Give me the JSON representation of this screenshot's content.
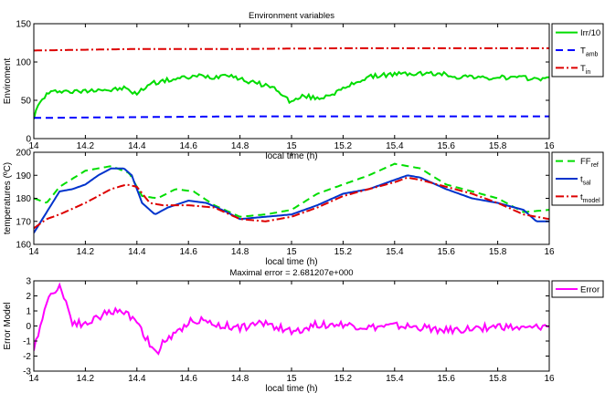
{
  "chart_data": [
    {
      "type": "line",
      "title": "Environment variables",
      "xlabel": "local time (h)",
      "ylabel": "Enviroment",
      "xlim": [
        14,
        16
      ],
      "ylim": [
        0,
        150
      ],
      "xticks": [
        14,
        14.2,
        14.4,
        14.6,
        14.8,
        15,
        15.2,
        15.4,
        15.6,
        15.8,
        16
      ],
      "xtick_labels": [
        "14",
        "14.2",
        "14.4",
        "14.6",
        "14.8",
        "15",
        "15.2",
        "15.4",
        "15.6",
        "15.8",
        "16"
      ],
      "yticks": [
        0,
        50,
        100,
        150
      ],
      "ytick_labels": [
        "0",
        "50",
        "100",
        "150"
      ],
      "grid": false,
      "legend_position": "outside-right",
      "series": [
        {
          "name": "Irr/10",
          "sub": "",
          "color": "#00dd00",
          "dash": "solid",
          "noise": 3,
          "x": [
            14.0,
            14.02,
            14.05,
            14.1,
            14.15,
            14.2,
            14.25,
            14.3,
            14.35,
            14.4,
            14.45,
            14.5,
            14.55,
            14.6,
            14.65,
            14.7,
            14.75,
            14.8,
            14.85,
            14.9,
            14.95,
            14.98,
            15.0,
            15.05,
            15.1,
            15.15,
            15.2,
            15.25,
            15.3,
            15.35,
            15.4,
            15.5,
            15.6,
            15.65,
            15.7,
            15.75,
            15.8,
            15.9,
            16.0
          ],
          "y": [
            28,
            45,
            58,
            63,
            61,
            62,
            65,
            63,
            66,
            58,
            72,
            75,
            78,
            80,
            82,
            80,
            85,
            78,
            73,
            70,
            63,
            52,
            48,
            56,
            52,
            58,
            64,
            74,
            80,
            83,
            84,
            85,
            84,
            80,
            82,
            78,
            80,
            79,
            78
          ]
        },
        {
          "name": "T",
          "sub": "amb",
          "color": "#0000ff",
          "dash": "8,5",
          "noise": 0,
          "x": [
            14.0,
            14.4,
            14.8,
            15.2,
            15.6,
            16.0
          ],
          "y": [
            27,
            28,
            29,
            29,
            29,
            29
          ]
        },
        {
          "name": "T",
          "sub": "in",
          "color": "#dd0000",
          "dash": "9,3,2,3",
          "noise": 0,
          "x": [
            14.0,
            14.4,
            14.8,
            15.2,
            15.6,
            16.0
          ],
          "y": [
            115,
            117,
            117,
            118,
            118,
            118
          ]
        }
      ]
    },
    {
      "type": "line",
      "title": "",
      "xlabel": "local time (h)",
      "ylabel": "temperatures (ºC)",
      "xlim": [
        14,
        16
      ],
      "ylim": [
        160,
        200
      ],
      "xticks": [
        14,
        14.2,
        14.4,
        14.6,
        14.8,
        15,
        15.2,
        15.4,
        15.6,
        15.8,
        16
      ],
      "xtick_labels": [
        "14",
        "14.2",
        "14.4",
        "14.6",
        "14.8",
        "15",
        "15.2",
        "15.4",
        "15.6",
        "15.8",
        "16"
      ],
      "yticks": [
        160,
        170,
        180,
        190,
        200
      ],
      "ytick_labels": [
        "160",
        "170",
        "180",
        "190",
        "200"
      ],
      "grid": false,
      "legend_position": "outside-right",
      "series": [
        {
          "name": "FF",
          "sub": "ref",
          "color": "#00dd00",
          "dash": "8,5",
          "noise": 0,
          "x": [
            14.0,
            14.05,
            14.1,
            14.2,
            14.3,
            14.37,
            14.42,
            14.48,
            14.55,
            14.62,
            14.7,
            14.8,
            14.9,
            15.0,
            15.1,
            15.2,
            15.3,
            15.4,
            15.5,
            15.6,
            15.7,
            15.8,
            15.9,
            16.0
          ],
          "y": [
            180,
            178,
            185,
            192,
            194,
            191,
            181,
            180,
            184,
            183,
            177,
            172,
            173,
            175,
            182,
            186,
            190,
            195,
            193,
            186,
            183,
            180,
            174,
            175
          ]
        },
        {
          "name": "t",
          "sub": "sal",
          "color": "#0033cc",
          "dash": "solid",
          "noise": 0,
          "x": [
            14.0,
            14.05,
            14.1,
            14.15,
            14.2,
            14.25,
            14.3,
            14.35,
            14.38,
            14.42,
            14.47,
            14.52,
            14.6,
            14.67,
            14.75,
            14.8,
            14.9,
            15.0,
            15.1,
            15.2,
            15.3,
            15.4,
            15.45,
            15.5,
            15.6,
            15.7,
            15.8,
            15.9,
            15.95,
            16.0
          ],
          "y": [
            165,
            174,
            183,
            184,
            186,
            190,
            193,
            193,
            190,
            178,
            173,
            176,
            179,
            178,
            174,
            171,
            172,
            173,
            177,
            182,
            184,
            188,
            190,
            189,
            184,
            180,
            178,
            175,
            170,
            170
          ]
        },
        {
          "name": "t",
          "sub": "model",
          "color": "#dd0000",
          "dash": "9,3,2,3",
          "noise": 0,
          "x": [
            14.0,
            14.05,
            14.1,
            14.2,
            14.3,
            14.36,
            14.4,
            14.45,
            14.5,
            14.6,
            14.7,
            14.8,
            14.9,
            15.0,
            15.1,
            15.2,
            15.3,
            15.4,
            15.45,
            15.5,
            15.6,
            15.7,
            15.8,
            15.9,
            16.0
          ],
          "y": [
            167,
            171,
            173,
            178,
            184,
            186,
            185,
            178,
            177,
            177,
            176,
            171,
            170,
            172,
            176,
            181,
            184,
            187,
            189,
            188,
            185,
            182,
            178,
            173,
            171
          ]
        }
      ]
    },
    {
      "type": "line",
      "title": "Maximal error = 2.681207e+000",
      "xlabel": "local time (h)",
      "ylabel": "Error Model",
      "xlim": [
        14,
        16
      ],
      "ylim": [
        -3,
        3
      ],
      "xticks": [
        14,
        14.2,
        14.4,
        14.6,
        14.8,
        15,
        15.2,
        15.4,
        15.6,
        15.8,
        16
      ],
      "xtick_labels": [
        "14",
        "14.2",
        "14.4",
        "14.6",
        "14.8",
        "15",
        "15.2",
        "15.4",
        "15.6",
        "15.8",
        "16"
      ],
      "yticks": [
        -3,
        -2,
        -1,
        0,
        1,
        2,
        3
      ],
      "ytick_labels": [
        "-3",
        "-2",
        "-1",
        "0",
        "1",
        "2",
        "3"
      ],
      "grid": false,
      "legend_position": "outside-right",
      "series": [
        {
          "name": "Error",
          "sub": "",
          "color": "#ff00ff",
          "dash": "solid",
          "noise": 0.25,
          "x": [
            14.0,
            14.02,
            14.05,
            14.08,
            14.1,
            14.12,
            14.15,
            14.2,
            14.25,
            14.3,
            14.35,
            14.4,
            14.42,
            14.45,
            14.48,
            14.5,
            14.55,
            14.6,
            14.65,
            14.7,
            14.8,
            14.9,
            15.0,
            15.1,
            15.2,
            15.3,
            15.4,
            15.5,
            15.6,
            15.7,
            15.8,
            15.9,
            16.0
          ],
          "y": [
            -1.8,
            -0.2,
            1.6,
            2.4,
            2.68,
            1.8,
            0.3,
            0.1,
            0.6,
            1.0,
            0.9,
            0.4,
            -0.3,
            -1.2,
            -2.0,
            -1.0,
            -0.6,
            0.3,
            0.4,
            0.1,
            -0.1,
            0.2,
            -0.4,
            0.1,
            0.1,
            -0.1,
            0.0,
            -0.1,
            -0.3,
            -0.2,
            0.0,
            -0.2,
            0.0
          ]
        }
      ]
    }
  ]
}
